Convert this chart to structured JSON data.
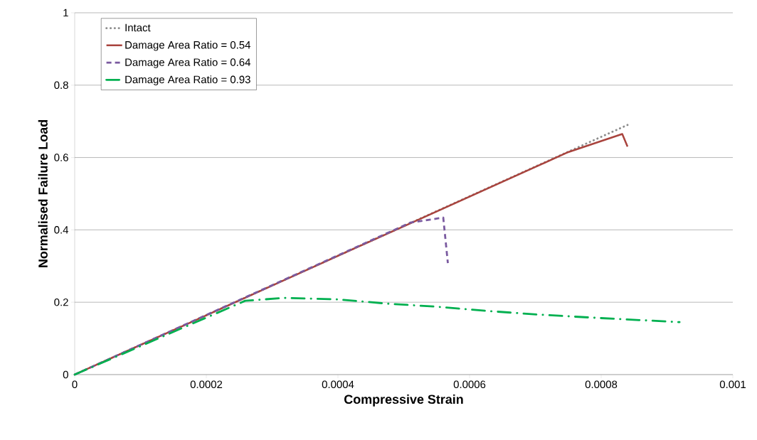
{
  "chart_data": {
    "type": "line",
    "xlabel": "Compressive Strain",
    "ylabel": "Normalised Failure Load",
    "xlim": [
      0,
      0.001
    ],
    "ylim": [
      0,
      1
    ],
    "xticks": [
      0,
      0.0002,
      0.0004,
      0.0006,
      0.0008,
      0.001
    ],
    "yticks": [
      0,
      0.2,
      0.4,
      0.6,
      0.8,
      1
    ],
    "grid": "y",
    "legend": "top left",
    "series": [
      {
        "name": "Intact",
        "color": "#8c8c8c",
        "line_style": "dotted",
        "x": [
          0,
          0.00084
        ],
        "values": [
          0,
          0.69
        ]
      },
      {
        "name": "Damage Area Ratio = 0.54",
        "color": "#a9443e",
        "line_style": "solid",
        "x": [
          0,
          0.0005,
          0.00075,
          0.000832,
          0.00084
        ],
        "values": [
          0,
          0.41,
          0.615,
          0.665,
          0.63
        ]
      },
      {
        "name": "Damage Area Ratio = 0.64",
        "color": "#7a5aa0",
        "line_style": "dashed",
        "x": [
          0,
          0.00051,
          0.00056,
          0.000567
        ],
        "values": [
          0,
          0.42,
          0.434,
          0.308
        ]
      },
      {
        "name": "Damage Area Ratio = 0.93",
        "color": "#00b050",
        "line_style": "dashdot",
        "x": [
          0,
          0.000259,
          0.000319,
          0.000398,
          0.000476,
          0.000555,
          0.000634,
          0.000712,
          0.000791,
          0.000919
        ],
        "values": [
          0,
          0.204,
          0.212,
          0.208,
          0.196,
          0.187,
          0.175,
          0.165,
          0.157,
          0.145
        ]
      }
    ]
  }
}
